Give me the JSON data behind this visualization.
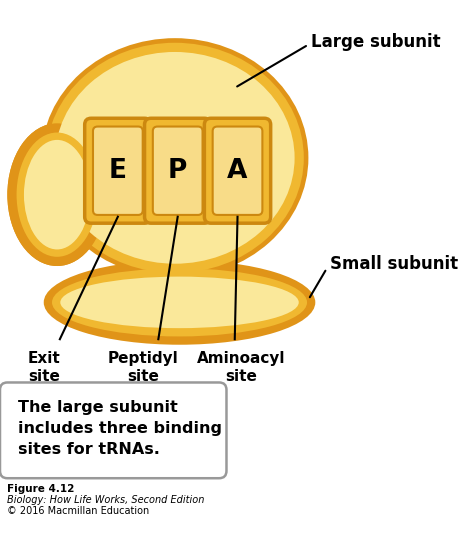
{
  "bg_color": "#ffffff",
  "orange_dark": "#E09418",
  "orange_mid": "#F0B830",
  "orange_light": "#F5D878",
  "yellow_light": "#FAE89A",
  "slot_border": "#CC8810",
  "slot_fill": "#F0C040",
  "slot_inner": "#F8DC88",
  "text_black": "#000000",
  "box_border": "#888888",
  "slot_labels": [
    "E",
    "P",
    "A"
  ],
  "label_large": "Large subunit",
  "label_small": "Small subunit",
  "label_exit": "Exit\nsite",
  "label_peptidyl": "Peptidyl\nsite",
  "label_aminoacyl": "Aminoacyl\nsite",
  "box_text": "The large subunit\nincludes three binding\nsites for tRNAs.",
  "figure_label": "Figure 4.12",
  "figure_sub1": "Biology: How Life Works, Second Edition",
  "figure_sub2": "© 2016 Macmillan Education"
}
